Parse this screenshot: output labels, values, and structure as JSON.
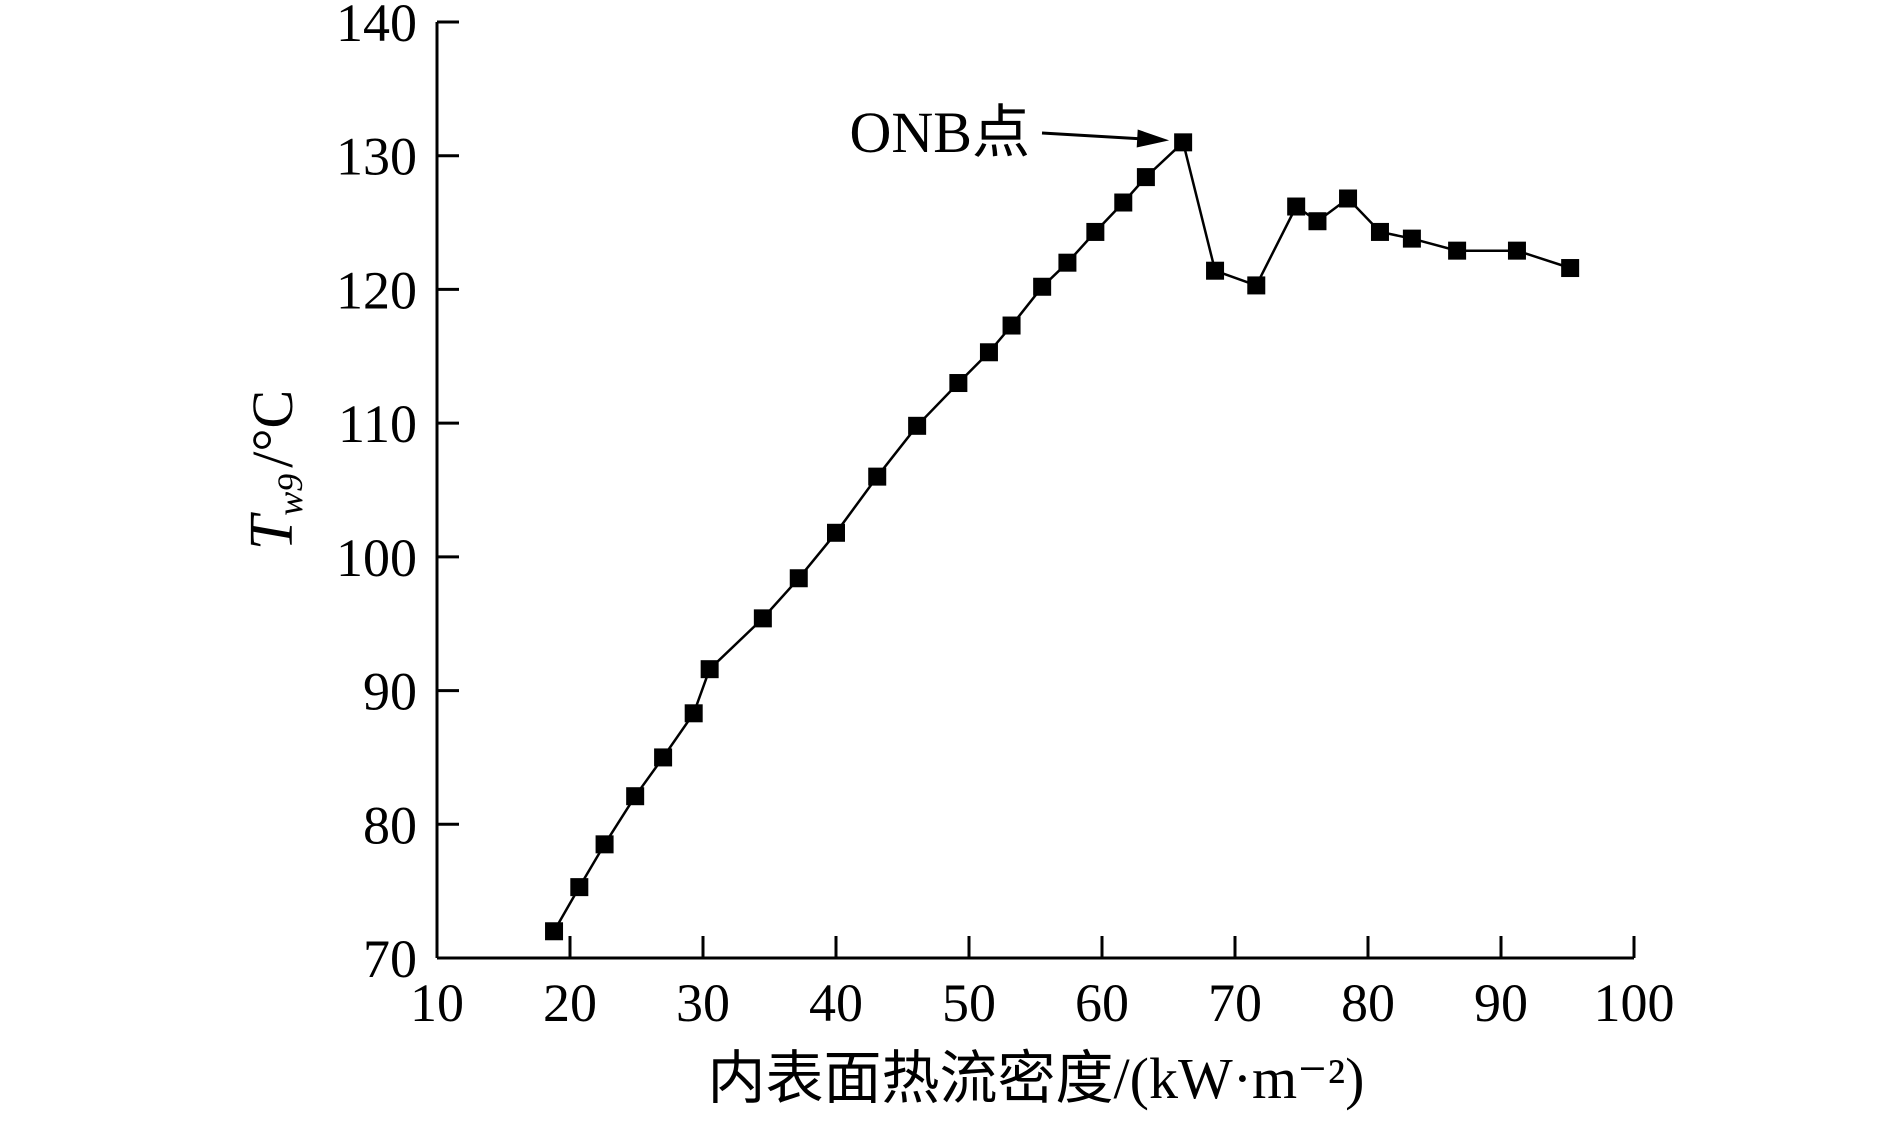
{
  "chart_data": {
    "type": "line",
    "title": "",
    "xlabel": "内表面热流密度/(kW·m⁻²)",
    "ylabel": "T_w9 /°C",
    "ylabel_parts": {
      "symbol": "T",
      "subscript": "w9",
      "unit": "/°C"
    },
    "xlim": [
      10,
      100
    ],
    "ylim": [
      70,
      140
    ],
    "x_ticks": [
      10,
      20,
      30,
      40,
      50,
      60,
      70,
      80,
      90,
      100
    ],
    "y_ticks": [
      70,
      80,
      90,
      100,
      110,
      120,
      130,
      140
    ],
    "grid": false,
    "marker": "square",
    "colors": {
      "line": "#000000",
      "marker": "#000000"
    },
    "series": [
      {
        "x": [
          18.8,
          20.7,
          22.6,
          24.9,
          27.0,
          29.3,
          30.5,
          34.5,
          37.2,
          40.0,
          43.1,
          46.1,
          49.2,
          51.5,
          53.2,
          55.5,
          57.4,
          59.5,
          61.6,
          63.3,
          66.1,
          68.5,
          71.6,
          74.6,
          76.2,
          78.5,
          80.9,
          83.3,
          86.7,
          91.2,
          95.2
        ],
        "y": [
          72.0,
          75.3,
          78.5,
          82.1,
          85.0,
          88.3,
          91.6,
          95.4,
          98.4,
          101.8,
          106.0,
          109.8,
          113.0,
          115.3,
          117.3,
          120.2,
          122.0,
          124.3,
          126.5,
          128.4,
          131.0,
          121.4,
          120.3,
          126.2,
          125.1,
          126.8,
          124.3,
          123.8,
          122.9,
          122.9,
          121.6
        ]
      }
    ],
    "annotations": [
      {
        "text": "ONB点",
        "points_to": {
          "x": 66.1,
          "y": 131.0
        }
      }
    ]
  }
}
